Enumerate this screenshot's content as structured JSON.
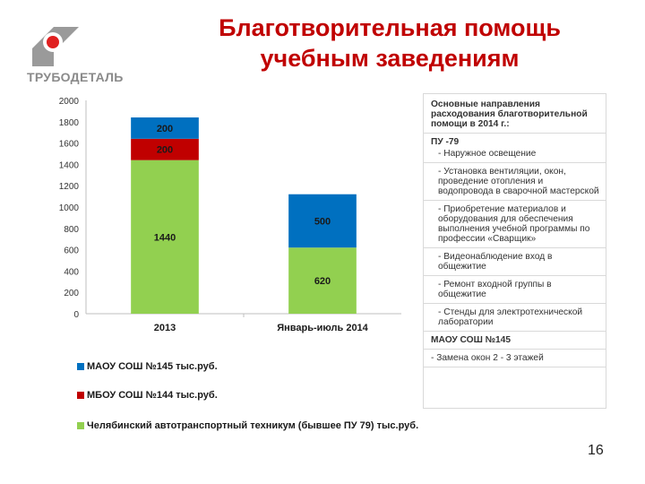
{
  "logo": {
    "name": "ТРУБОДЕТАЛЬ",
    "colors": {
      "gray": "#9a9a9a",
      "red": "#e02020"
    }
  },
  "title": {
    "line1": "Благотворительная помощь",
    "line2": "учебным заведениям"
  },
  "chart_data": {
    "type": "bar",
    "stacked": true,
    "categories": [
      "2013",
      "Январь-июль 2014"
    ],
    "series": [
      {
        "name": "Челябинский автотранспортный техникум (бывшее ПУ 79) тыс.руб.",
        "values": [
          1440,
          620
        ],
        "color": "#92d050"
      },
      {
        "name": "МБОУ СОШ №144 тыс.руб.",
        "values": [
          200,
          null
        ],
        "color": "#c00000"
      },
      {
        "name": "МАОУ СОШ №145 тыс.руб.",
        "values": [
          200,
          500
        ],
        "color": "#0070c0"
      }
    ],
    "data_labels": [
      [
        "1440",
        "200",
        "200"
      ],
      [
        "620",
        "",
        "500"
      ]
    ],
    "ylim": [
      0,
      2000
    ],
    "yticks": [
      0,
      200,
      400,
      600,
      800,
      1000,
      1200,
      1400,
      1600,
      1800,
      2000
    ],
    "grid": false,
    "legend_position": "bottom"
  },
  "notes": {
    "heading": "Основные направления расходования благотворительной помощи в 2014 г.:",
    "group1_title": "ПУ -79",
    "group1_items": [
      "- Наружное освещение",
      "- Установка вентиляции, окон, проведение отопления и водопровода в сварочной мастерской",
      "- Приобретение материалов и оборудования для обеспечения выполнения учебной программы по профессии «Сварщик»",
      "- Видеонаблюдение вход в общежитие",
      "- Ремонт входной группы в общежитие",
      "- Стенды для электротехнической лаборатории"
    ],
    "group2_title": "МАОУ СОШ №145",
    "group2_items": [
      "- Замена окон 2 - 3 этажей"
    ]
  },
  "page_number": "16"
}
